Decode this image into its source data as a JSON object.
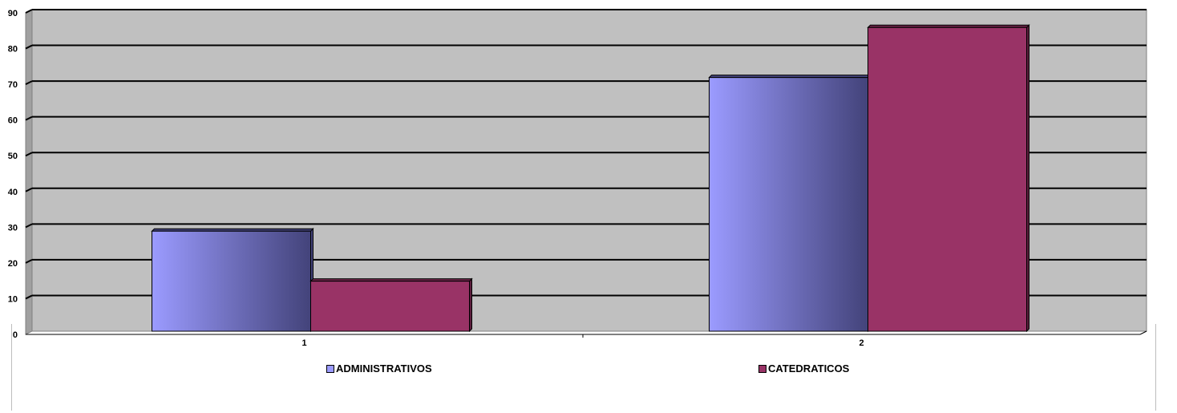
{
  "chart_data": {
    "type": "bar",
    "categories": [
      "1",
      "2"
    ],
    "series": [
      {
        "name": "ADMINISTRATIVOS",
        "values": [
          28,
          71
        ]
      },
      {
        "name": "CATEDRATICOS",
        "values": [
          14,
          85
        ]
      }
    ],
    "ylim": [
      0,
      90
    ],
    "yticks": [
      "0",
      "10",
      "20",
      "30",
      "40",
      "50",
      "60",
      "70",
      "80",
      "90"
    ],
    "grid": true,
    "legend_position": "bottom",
    "colors": {
      "ADMINISTRATIVOS_light": "#9b9bff",
      "ADMINISTRATIVOS_dark": "#43437a",
      "CATEDRATICOS": "#993366",
      "plot_background": "#c0c0c0",
      "gridline": "#000000"
    }
  }
}
